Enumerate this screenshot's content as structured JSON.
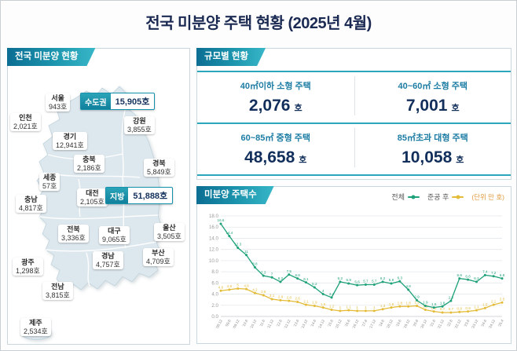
{
  "title": "전국 미분양 주택 현황 (2025년 4월)",
  "map_panel": {
    "header": "전국 미분양 현황",
    "summary": {
      "sudogwon_label": "수도권",
      "sudogwon_value": "15,905호",
      "jibang_label": "지방",
      "jibang_value": "51,888호"
    },
    "regions": [
      {
        "name": "서울",
        "value": "943호"
      },
      {
        "name": "인천",
        "value": "2,021호"
      },
      {
        "name": "경기",
        "value": "12,941호"
      },
      {
        "name": "강원",
        "value": "3,855호"
      },
      {
        "name": "충북",
        "value": "2,186호"
      },
      {
        "name": "경북",
        "value": "5,849호"
      },
      {
        "name": "세종",
        "value": "57호"
      },
      {
        "name": "충남",
        "value": "4,817호"
      },
      {
        "name": "대전",
        "value": "2,105호"
      },
      {
        "name": "전북",
        "value": "3,336호"
      },
      {
        "name": "대구",
        "value": "9,065호"
      },
      {
        "name": "울산",
        "value": "3,505호"
      },
      {
        "name": "경남",
        "value": "4,757호"
      },
      {
        "name": "부산",
        "value": "4,709호"
      },
      {
        "name": "광주",
        "value": "1,298호"
      },
      {
        "name": "전남",
        "value": "3,815호"
      },
      {
        "name": "제주",
        "value": "2,534호"
      }
    ]
  },
  "scale_panel": {
    "header": "규모별 현황",
    "cells": [
      {
        "label": "40㎡이하 소형 주택",
        "value": "2,076",
        "unit": "호"
      },
      {
        "label": "40~60㎡ 소형 주택",
        "value": "7,001",
        "unit": "호"
      },
      {
        "label": "60~85㎡ 중형 주택",
        "value": "48,658",
        "unit": "호"
      },
      {
        "label": "85㎡초과 대형 주택",
        "value": "10,058",
        "unit": "호"
      }
    ]
  },
  "chart_panel": {
    "header": "미분양 주택수",
    "legend": [
      {
        "label": "전체"
      },
      {
        "label": "준공 후"
      }
    ],
    "unit_note": "(단위 만 호)"
  },
  "chart_data": {
    "type": "line",
    "title": "미분양 주택수",
    "unit": "만 호",
    "ylim": [
      0,
      18
    ],
    "ytick_step": 2,
    "grid": true,
    "legend_position": "top-right",
    "x": [
      "'08.12",
      "'09.6",
      "'09.12",
      "'10.6",
      "'10.12",
      "'11.6",
      "'11.12",
      "'12.6",
      "'12.12",
      "'13.6",
      "'13.12",
      "'14.6",
      "'14.12",
      "'15.6",
      "'15.12",
      "'16.6",
      "'16.12",
      "'17.6",
      "'17.12",
      "'18.6",
      "'18.12",
      "'19.6",
      "'19.12",
      "'20.6",
      "'20.12",
      "'21.6",
      "'21.12",
      "'22.6",
      "'22.12",
      "'23.6",
      "'23.12",
      "'24.6",
      "'24.12",
      "'25.4"
    ],
    "series": [
      {
        "name": "전체",
        "color": "#1fa179",
        "values": [
          16.6,
          14.4,
          12.3,
          11.0,
          8.8,
          7.3,
          7.0,
          6.2,
          7.5,
          6.8,
          6.1,
          5.2,
          4.0,
          3.4,
          6.2,
          5.9,
          5.6,
          5.7,
          5.7,
          6.2,
          5.9,
          6.3,
          4.8,
          2.9,
          1.9,
          1.6,
          1.8,
          2.8,
          6.8,
          6.6,
          6.2,
          7.4,
          7.2,
          6.8
        ]
      },
      {
        "name": "준공 후",
        "color": "#e4bc3a",
        "values": [
          4.6,
          4.8,
          5.0,
          4.9,
          4.2,
          3.8,
          3.1,
          2.9,
          2.8,
          2.6,
          2.1,
          1.9,
          1.6,
          1.2,
          1.0,
          1.1,
          1.0,
          1.0,
          1.0,
          1.3,
          1.6,
          1.8,
          1.8,
          1.9,
          1.2,
          0.9,
          0.7,
          0.7,
          0.8,
          0.9,
          1.1,
          1.5,
          2.1,
          2.5
        ]
      }
    ]
  }
}
